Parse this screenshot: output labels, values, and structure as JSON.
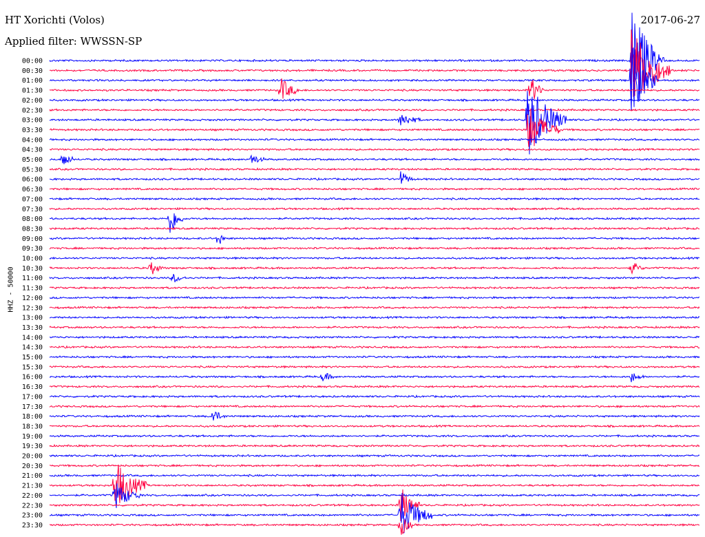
{
  "header": {
    "title": "HT Xorichti (Volos)",
    "filter": "Applied filter: WWSSN-SP",
    "date": "2017-06-27"
  },
  "chart_data": {
    "type": "line",
    "ylabel": "HHZ - 50000",
    "colors": [
      "#0000ff",
      "#ff0040"
    ],
    "rows": [
      "00:00",
      "00:30",
      "01:00",
      "01:30",
      "02:00",
      "02:30",
      "03:00",
      "03:30",
      "04:00",
      "04:30",
      "05:00",
      "05:30",
      "06:00",
      "06:30",
      "07:00",
      "07:30",
      "08:00",
      "08:30",
      "09:00",
      "09:30",
      "10:00",
      "10:30",
      "11:00",
      "11:30",
      "12:00",
      "12:30",
      "13:00",
      "13:30",
      "14:00",
      "14:30",
      "15:00",
      "15:30",
      "16:00",
      "16:30",
      "17:00",
      "17:30",
      "18:00",
      "18:30",
      "19:00",
      "19:30",
      "20:00",
      "20:30",
      "21:00",
      "21:30",
      "22:00",
      "22:30",
      "23:00",
      "23:30"
    ],
    "events": [
      {
        "row": 1,
        "t": 0.895,
        "amp": 70,
        "dur": 0.06
      },
      {
        "row": 0,
        "t": 0.895,
        "amp": 90,
        "dur": 0.05
      },
      {
        "row": 2,
        "t": 0.895,
        "amp": 60,
        "dur": 0.04
      },
      {
        "row": 3,
        "t": 0.355,
        "amp": 20,
        "dur": 0.03
      },
      {
        "row": 3,
        "t": 0.74,
        "amp": 24,
        "dur": 0.02
      },
      {
        "row": 6,
        "t": 0.735,
        "amp": 60,
        "dur": 0.06
      },
      {
        "row": 7,
        "t": 0.735,
        "amp": 40,
        "dur": 0.05
      },
      {
        "row": 6,
        "t": 0.54,
        "amp": 12,
        "dur": 0.03
      },
      {
        "row": 10,
        "t": 0.02,
        "amp": 12,
        "dur": 0.02
      },
      {
        "row": 10,
        "t": 0.31,
        "amp": 10,
        "dur": 0.02
      },
      {
        "row": 12,
        "t": 0.54,
        "amp": 12,
        "dur": 0.02
      },
      {
        "row": 16,
        "t": 0.185,
        "amp": 28,
        "dur": 0.02
      },
      {
        "row": 18,
        "t": 0.26,
        "amp": 16,
        "dur": 0.01
      },
      {
        "row": 21,
        "t": 0.155,
        "amp": 12,
        "dur": 0.02
      },
      {
        "row": 21,
        "t": 0.895,
        "amp": 10,
        "dur": 0.02
      },
      {
        "row": 22,
        "t": 0.19,
        "amp": 8,
        "dur": 0.02
      },
      {
        "row": 32,
        "t": 0.42,
        "amp": 8,
        "dur": 0.02
      },
      {
        "row": 32,
        "t": 0.895,
        "amp": 8,
        "dur": 0.02
      },
      {
        "row": 36,
        "t": 0.25,
        "amp": 12,
        "dur": 0.02
      },
      {
        "row": 43,
        "t": 0.1,
        "amp": 40,
        "dur": 0.05
      },
      {
        "row": 44,
        "t": 0.1,
        "amp": 22,
        "dur": 0.04
      },
      {
        "row": 46,
        "t": 0.54,
        "amp": 36,
        "dur": 0.05
      },
      {
        "row": 45,
        "t": 0.54,
        "amp": 30,
        "dur": 0.03
      },
      {
        "row": 47,
        "t": 0.54,
        "amp": 18,
        "dur": 0.02
      }
    ]
  }
}
